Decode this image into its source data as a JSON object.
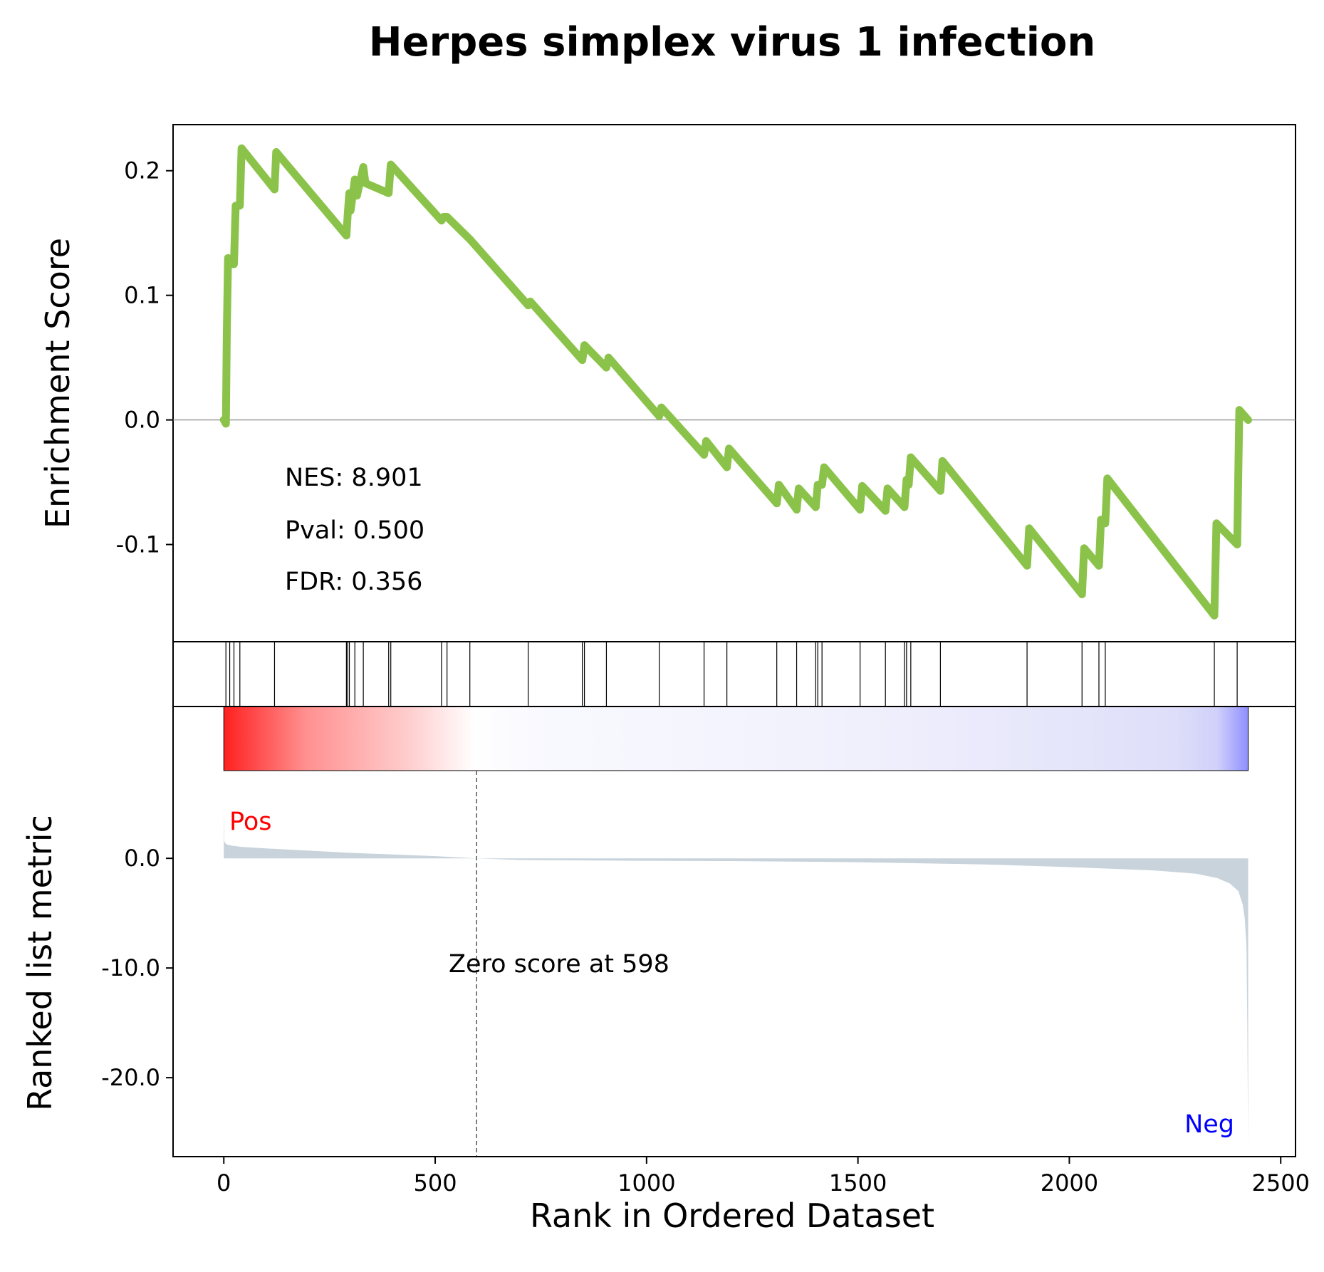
{
  "chart_data": {
    "type": "line",
    "title": "Herpes simplex virus 1 infection",
    "es_panel": {
      "ylabel": "Enrichment Score",
      "ylim": [
        -0.178,
        0.237
      ],
      "yticks": [
        {
          "value": 0.2,
          "label": "0.2"
        },
        {
          "value": 0.1,
          "label": "0.1"
        },
        {
          "value": 0.0,
          "label": "0.0"
        },
        {
          "value": -0.1,
          "label": "-0.1"
        }
      ],
      "color": "#8bc34a",
      "series": {
        "x": [
          0,
          5,
          7,
          10,
          14,
          24,
          28,
          38,
          42,
          120,
          124,
          290,
          293,
          297,
          300,
          310,
          315,
          330,
          335,
          390,
          395,
          515,
          520,
          528,
          582,
          720,
          725,
          848,
          853,
          905,
          910,
          1030,
          1035,
          1136,
          1141,
          1190,
          1195,
          1308,
          1313,
          1355,
          1360,
          1400,
          1405,
          1415,
          1420,
          1505,
          1510,
          1565,
          1570,
          1610,
          1615,
          1620,
          1625,
          1695,
          1700,
          1900,
          1905,
          2030,
          2035,
          2070,
          2075,
          2085,
          2090,
          2343,
          2348,
          2397,
          2402,
          2423
        ],
        "y": [
          0.0,
          -0.003,
          0.068,
          0.13,
          0.125,
          0.125,
          0.172,
          0.172,
          0.218,
          0.185,
          0.215,
          0.148,
          0.165,
          0.182,
          0.168,
          0.193,
          0.18,
          0.203,
          0.19,
          0.182,
          0.205,
          0.16,
          0.163,
          0.163,
          0.145,
          0.092,
          0.095,
          0.048,
          0.06,
          0.042,
          0.05,
          0.003,
          0.01,
          -0.028,
          -0.017,
          -0.038,
          -0.023,
          -0.067,
          -0.052,
          -0.072,
          -0.055,
          -0.07,
          -0.052,
          -0.052,
          -0.038,
          -0.072,
          -0.053,
          -0.073,
          -0.055,
          -0.07,
          -0.048,
          -0.052,
          -0.03,
          -0.057,
          -0.033,
          -0.117,
          -0.087,
          -0.14,
          -0.103,
          -0.117,
          -0.08,
          -0.083,
          -0.047,
          -0.157,
          -0.083,
          -0.1,
          0.008,
          0.0
        ]
      },
      "stats": [
        "NES: 8.901",
        "Pval: 0.500",
        "FDR: 0.356"
      ]
    },
    "hits": [
      5,
      14,
      24,
      38,
      120,
      290,
      293,
      297,
      310,
      330,
      390,
      395,
      515,
      528,
      582,
      720,
      848,
      853,
      905,
      1030,
      1136,
      1190,
      1308,
      1355,
      1400,
      1405,
      1415,
      1505,
      1565,
      1610,
      1615,
      1625,
      1695,
      1900,
      2030,
      2070,
      2085,
      2343,
      2397
    ],
    "heatmap": {
      "colors": [
        "#ff0000",
        "#ffffff",
        "#0000ff"
      ]
    },
    "metric_panel": {
      "ylabel": "Ranked list metric",
      "xlabel": "Rank in Ordered Dataset",
      "xlim": [
        -120,
        2535
      ],
      "ylim": [
        -27.2,
        8.0
      ],
      "xticks": [
        {
          "value": 0,
          "label": "0"
        },
        {
          "value": 500,
          "label": "500"
        },
        {
          "value": 1000,
          "label": "1000"
        },
        {
          "value": 1500,
          "label": "1500"
        },
        {
          "value": 2000,
          "label": "2000"
        },
        {
          "value": 2500,
          "label": "2500"
        }
      ],
      "yticks": [
        {
          "value": 0.0,
          "label": "0.0"
        },
        {
          "value": -10.0,
          "label": "-10.0"
        },
        {
          "value": -20.0,
          "label": "-20.0"
        }
      ],
      "fill_color": "#c8d3db",
      "series": {
        "x": [
          0,
          1,
          3,
          8,
          20,
          40,
          100,
          200,
          300,
          400,
          500,
          598,
          700,
          900,
          1200,
          1500,
          1800,
          2000,
          2200,
          2300,
          2350,
          2380,
          2400,
          2410,
          2415,
          2419,
          2421,
          2423
        ],
        "y": [
          5.0,
          1.6,
          1.4,
          1.25,
          1.15,
          1.05,
          0.9,
          0.7,
          0.5,
          0.35,
          0.2,
          0.0,
          -0.15,
          -0.2,
          -0.25,
          -0.35,
          -0.55,
          -0.8,
          -1.1,
          -1.4,
          -1.8,
          -2.3,
          -3.0,
          -4.2,
          -5.5,
          -8.0,
          -15.0,
          -26.2
        ]
      },
      "zero_cross": 598,
      "zero_label": "Zero score at 598",
      "pos_label": "Pos",
      "neg_label": "Neg",
      "pos_color": "#ff0000",
      "neg_color": "#0000ff"
    }
  }
}
